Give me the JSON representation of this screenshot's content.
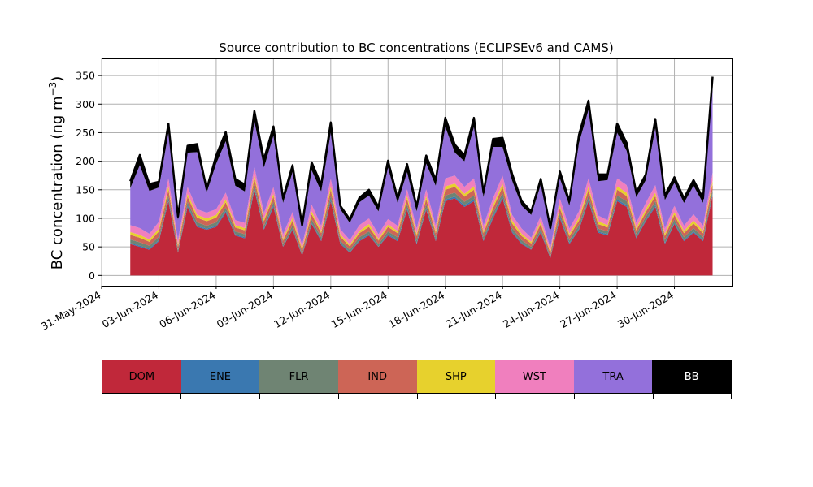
{
  "chart_data": {
    "type": "area",
    "title": "Source contribution to BC concentrations (ECLIPSEv6 and CAMS)",
    "ylabel_main": "BC concentration (ng m",
    "ylabel_sup": "−3",
    "ylabel_close": ")",
    "ylim": [
      -18,
      380
    ],
    "yticks": [
      0,
      50,
      100,
      150,
      200,
      250,
      300,
      350
    ],
    "xlim": [
      "2024-05-31T00",
      "2024-07-03T00"
    ],
    "xticks": [
      "31-May-2024",
      "03-Jun-2024",
      "06-Jun-2024",
      "09-Jun-2024",
      "12-Jun-2024",
      "15-Jun-2024",
      "18-Jun-2024",
      "21-Jun-2024",
      "24-Jun-2024",
      "27-Jun-2024",
      "30-Jun-2024"
    ],
    "grid": true,
    "x": [
      "2024-06-01T12",
      "2024-06-02T00",
      "2024-06-02T12",
      "2024-06-03T00",
      "2024-06-03T12",
      "2024-06-04T00",
      "2024-06-04T12",
      "2024-06-05T00",
      "2024-06-05T12",
      "2024-06-06T00",
      "2024-06-06T12",
      "2024-06-07T00",
      "2024-06-07T12",
      "2024-06-08T00",
      "2024-06-08T12",
      "2024-06-09T00",
      "2024-06-09T12",
      "2024-06-10T00",
      "2024-06-10T12",
      "2024-06-11T00",
      "2024-06-11T12",
      "2024-06-12T00",
      "2024-06-12T12",
      "2024-06-13T00",
      "2024-06-13T12",
      "2024-06-14T00",
      "2024-06-14T12",
      "2024-06-15T00",
      "2024-06-15T12",
      "2024-06-16T00",
      "2024-06-16T12",
      "2024-06-17T00",
      "2024-06-17T12",
      "2024-06-18T00",
      "2024-06-18T12",
      "2024-06-19T00",
      "2024-06-19T12",
      "2024-06-20T00",
      "2024-06-20T12",
      "2024-06-21T00",
      "2024-06-21T12",
      "2024-06-22T00",
      "2024-06-22T12",
      "2024-06-23T00",
      "2024-06-23T12",
      "2024-06-24T00",
      "2024-06-24T12",
      "2024-06-25T00",
      "2024-06-25T12",
      "2024-06-26T00",
      "2024-06-26T12",
      "2024-06-27T00",
      "2024-06-27T12",
      "2024-06-28T00",
      "2024-06-28T12",
      "2024-06-29T00",
      "2024-06-29T12",
      "2024-06-30T00",
      "2024-06-30T12",
      "2024-07-01T00",
      "2024-07-01T12",
      "2024-07-02T00"
    ],
    "series": [
      {
        "name": "DOM",
        "color": "#c0283a",
        "values": [
          55,
          50,
          45,
          60,
          130,
          40,
          120,
          85,
          80,
          85,
          110,
          70,
          65,
          150,
          80,
          120,
          50,
          80,
          35,
          90,
          60,
          130,
          55,
          40,
          60,
          70,
          50,
          70,
          60,
          115,
          55,
          115,
          60,
          130,
          135,
          120,
          130,
          60,
          100,
          135,
          75,
          55,
          45,
          75,
          30,
          100,
          55,
          80,
          130,
          75,
          70,
          130,
          120,
          65,
          95,
          120,
          55,
          90,
          60,
          75,
          60,
          140
        ]
      },
      {
        "name": "ENE",
        "color": "#3a78b0",
        "values": [
          2,
          2,
          2,
          2,
          3,
          1,
          3,
          2,
          2,
          2,
          3,
          2,
          2,
          3,
          2,
          3,
          1,
          2,
          1,
          2,
          2,
          3,
          2,
          1,
          2,
          2,
          1,
          2,
          2,
          3,
          2,
          3,
          2,
          3,
          3,
          3,
          3,
          2,
          3,
          3,
          2,
          2,
          1,
          2,
          1,
          3,
          2,
          2,
          3,
          2,
          2,
          3,
          3,
          2,
          2,
          3,
          2,
          2,
          2,
          2,
          2,
          3
        ]
      },
      {
        "name": "FLR",
        "color": "#6f8473",
        "values": [
          6,
          6,
          5,
          6,
          7,
          4,
          6,
          6,
          5,
          6,
          6,
          5,
          5,
          7,
          5,
          6,
          4,
          6,
          3,
          6,
          5,
          7,
          4,
          4,
          5,
          5,
          4,
          5,
          5,
          7,
          5,
          7,
          5,
          7,
          7,
          6,
          7,
          5,
          6,
          7,
          6,
          5,
          4,
          5,
          3,
          6,
          5,
          6,
          7,
          5,
          5,
          7,
          7,
          5,
          6,
          7,
          5,
          6,
          5,
          6,
          5,
          7
        ]
      },
      {
        "name": "IND",
        "color": "#cd6556",
        "values": [
          8,
          8,
          7,
          9,
          10,
          6,
          9,
          8,
          8,
          8,
          9,
          7,
          7,
          10,
          8,
          9,
          6,
          8,
          5,
          9,
          7,
          10,
          7,
          6,
          7,
          8,
          6,
          8,
          7,
          9,
          7,
          9,
          7,
          10,
          10,
          9,
          10,
          7,
          9,
          10,
          8,
          7,
          6,
          8,
          5,
          9,
          7,
          8,
          10,
          8,
          7,
          10,
          9,
          7,
          8,
          9,
          7,
          8,
          7,
          8,
          7,
          10
        ]
      },
      {
        "name": "SHP",
        "color": "#e7d12d",
        "values": [
          5,
          5,
          4,
          5,
          6,
          3,
          5,
          5,
          5,
          5,
          5,
          4,
          4,
          6,
          4,
          5,
          3,
          5,
          3,
          5,
          4,
          6,
          4,
          3,
          4,
          5,
          3,
          4,
          4,
          5,
          4,
          5,
          4,
          6,
          6,
          5,
          6,
          4,
          5,
          6,
          5,
          4,
          3,
          4,
          3,
          5,
          4,
          5,
          6,
          5,
          4,
          6,
          6,
          4,
          5,
          6,
          4,
          5,
          4,
          5,
          4,
          6
        ]
      },
      {
        "name": "WST",
        "color": "#f07fbe",
        "values": [
          12,
          12,
          10,
          12,
          14,
          8,
          12,
          10,
          10,
          10,
          12,
          9,
          9,
          14,
          10,
          12,
          8,
          10,
          6,
          12,
          9,
          14,
          9,
          8,
          10,
          10,
          8,
          10,
          9,
          12,
          9,
          12,
          9,
          14,
          14,
          12,
          14,
          9,
          12,
          14,
          10,
          9,
          7,
          10,
          6,
          12,
          9,
          11,
          14,
          10,
          9,
          14,
          13,
          9,
          11,
          13,
          9,
          11,
          9,
          11,
          9,
          14
        ]
      },
      {
        "name": "TRA",
        "color": "#9370db",
        "values": [
          65,
          110,
          75,
          60,
          80,
          35,
          60,
          100,
          35,
          80,
          90,
          60,
          55,
          80,
          80,
          90,
          55,
          70,
          30,
          60,
          60,
          80,
          35,
          30,
          40,
          40,
          40,
          90,
          40,
          30,
          30,
          45,
          70,
          90,
          40,
          45,
          90,
          50,
          90,
          50,
          60,
          40,
          40,
          55,
          30,
          35,
          40,
          120,
          120,
          60,
          70,
          80,
          60,
          45,
          40,
          100,
          50,
          40,
          40,
          50,
          40,
          150
        ]
      },
      {
        "name": "BB",
        "color": "#000000",
        "values": [
          12,
          18,
          12,
          10,
          16,
          6,
          12,
          14,
          6,
          14,
          16,
          12,
          12,
          18,
          14,
          16,
          8,
          12,
          5,
          14,
          12,
          18,
          6,
          6,
          8,
          10,
          8,
          12,
          8,
          14,
          8,
          14,
          10,
          16,
          14,
          10,
          16,
          8,
          14,
          16,
          12,
          8,
          6,
          10,
          5,
          12,
          8,
          14,
          16,
          12,
          10,
          16,
          14,
          8,
          10,
          16,
          8,
          10,
          8,
          10,
          8,
          18
        ]
      }
    ]
  }
}
